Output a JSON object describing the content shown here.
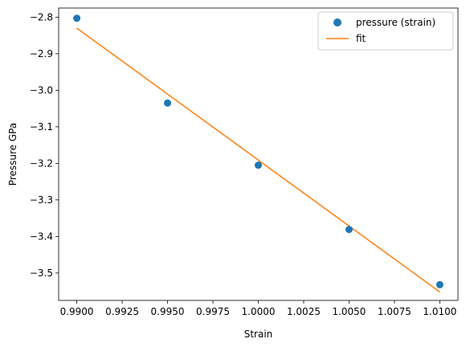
{
  "chart_data": {
    "type": "scatter",
    "xlabel": "Strain",
    "ylabel": "Pressure GPa",
    "xlim": [
      0.989,
      1.011
    ],
    "ylim": [
      -3.575,
      -2.775
    ],
    "x_ticks": [
      0.99,
      0.9925,
      0.995,
      0.9975,
      1.0,
      1.0025,
      1.005,
      1.0075,
      1.01
    ],
    "x_tick_labels": [
      "0.9900",
      "0.9925",
      "0.9950",
      "0.9975",
      "1.0000",
      "1.0025",
      "1.0050",
      "1.0075",
      "1.0100"
    ],
    "y_ticks": [
      -2.8,
      -2.9,
      -3.0,
      -3.1,
      -3.2,
      -3.3,
      -3.4,
      -3.5
    ],
    "y_tick_labels": [
      "−2.8",
      "−2.9",
      "−3.0",
      "−3.1",
      "−3.2",
      "−3.3",
      "−3.4",
      "−3.5"
    ],
    "grid": false,
    "legend_position": "top-right",
    "series": [
      {
        "name": "pressure (strain)",
        "kind": "points",
        "color": "#1f77b4",
        "x": [
          0.99,
          0.995,
          1.0,
          1.005,
          1.01
        ],
        "y": [
          -2.803,
          -3.035,
          -3.205,
          -3.381,
          -3.532
        ]
      },
      {
        "name": "fit",
        "kind": "line",
        "color": "#ff7f0e",
        "x": [
          0.99,
          1.01
        ],
        "y": [
          -2.83,
          -3.552
        ]
      }
    ]
  }
}
